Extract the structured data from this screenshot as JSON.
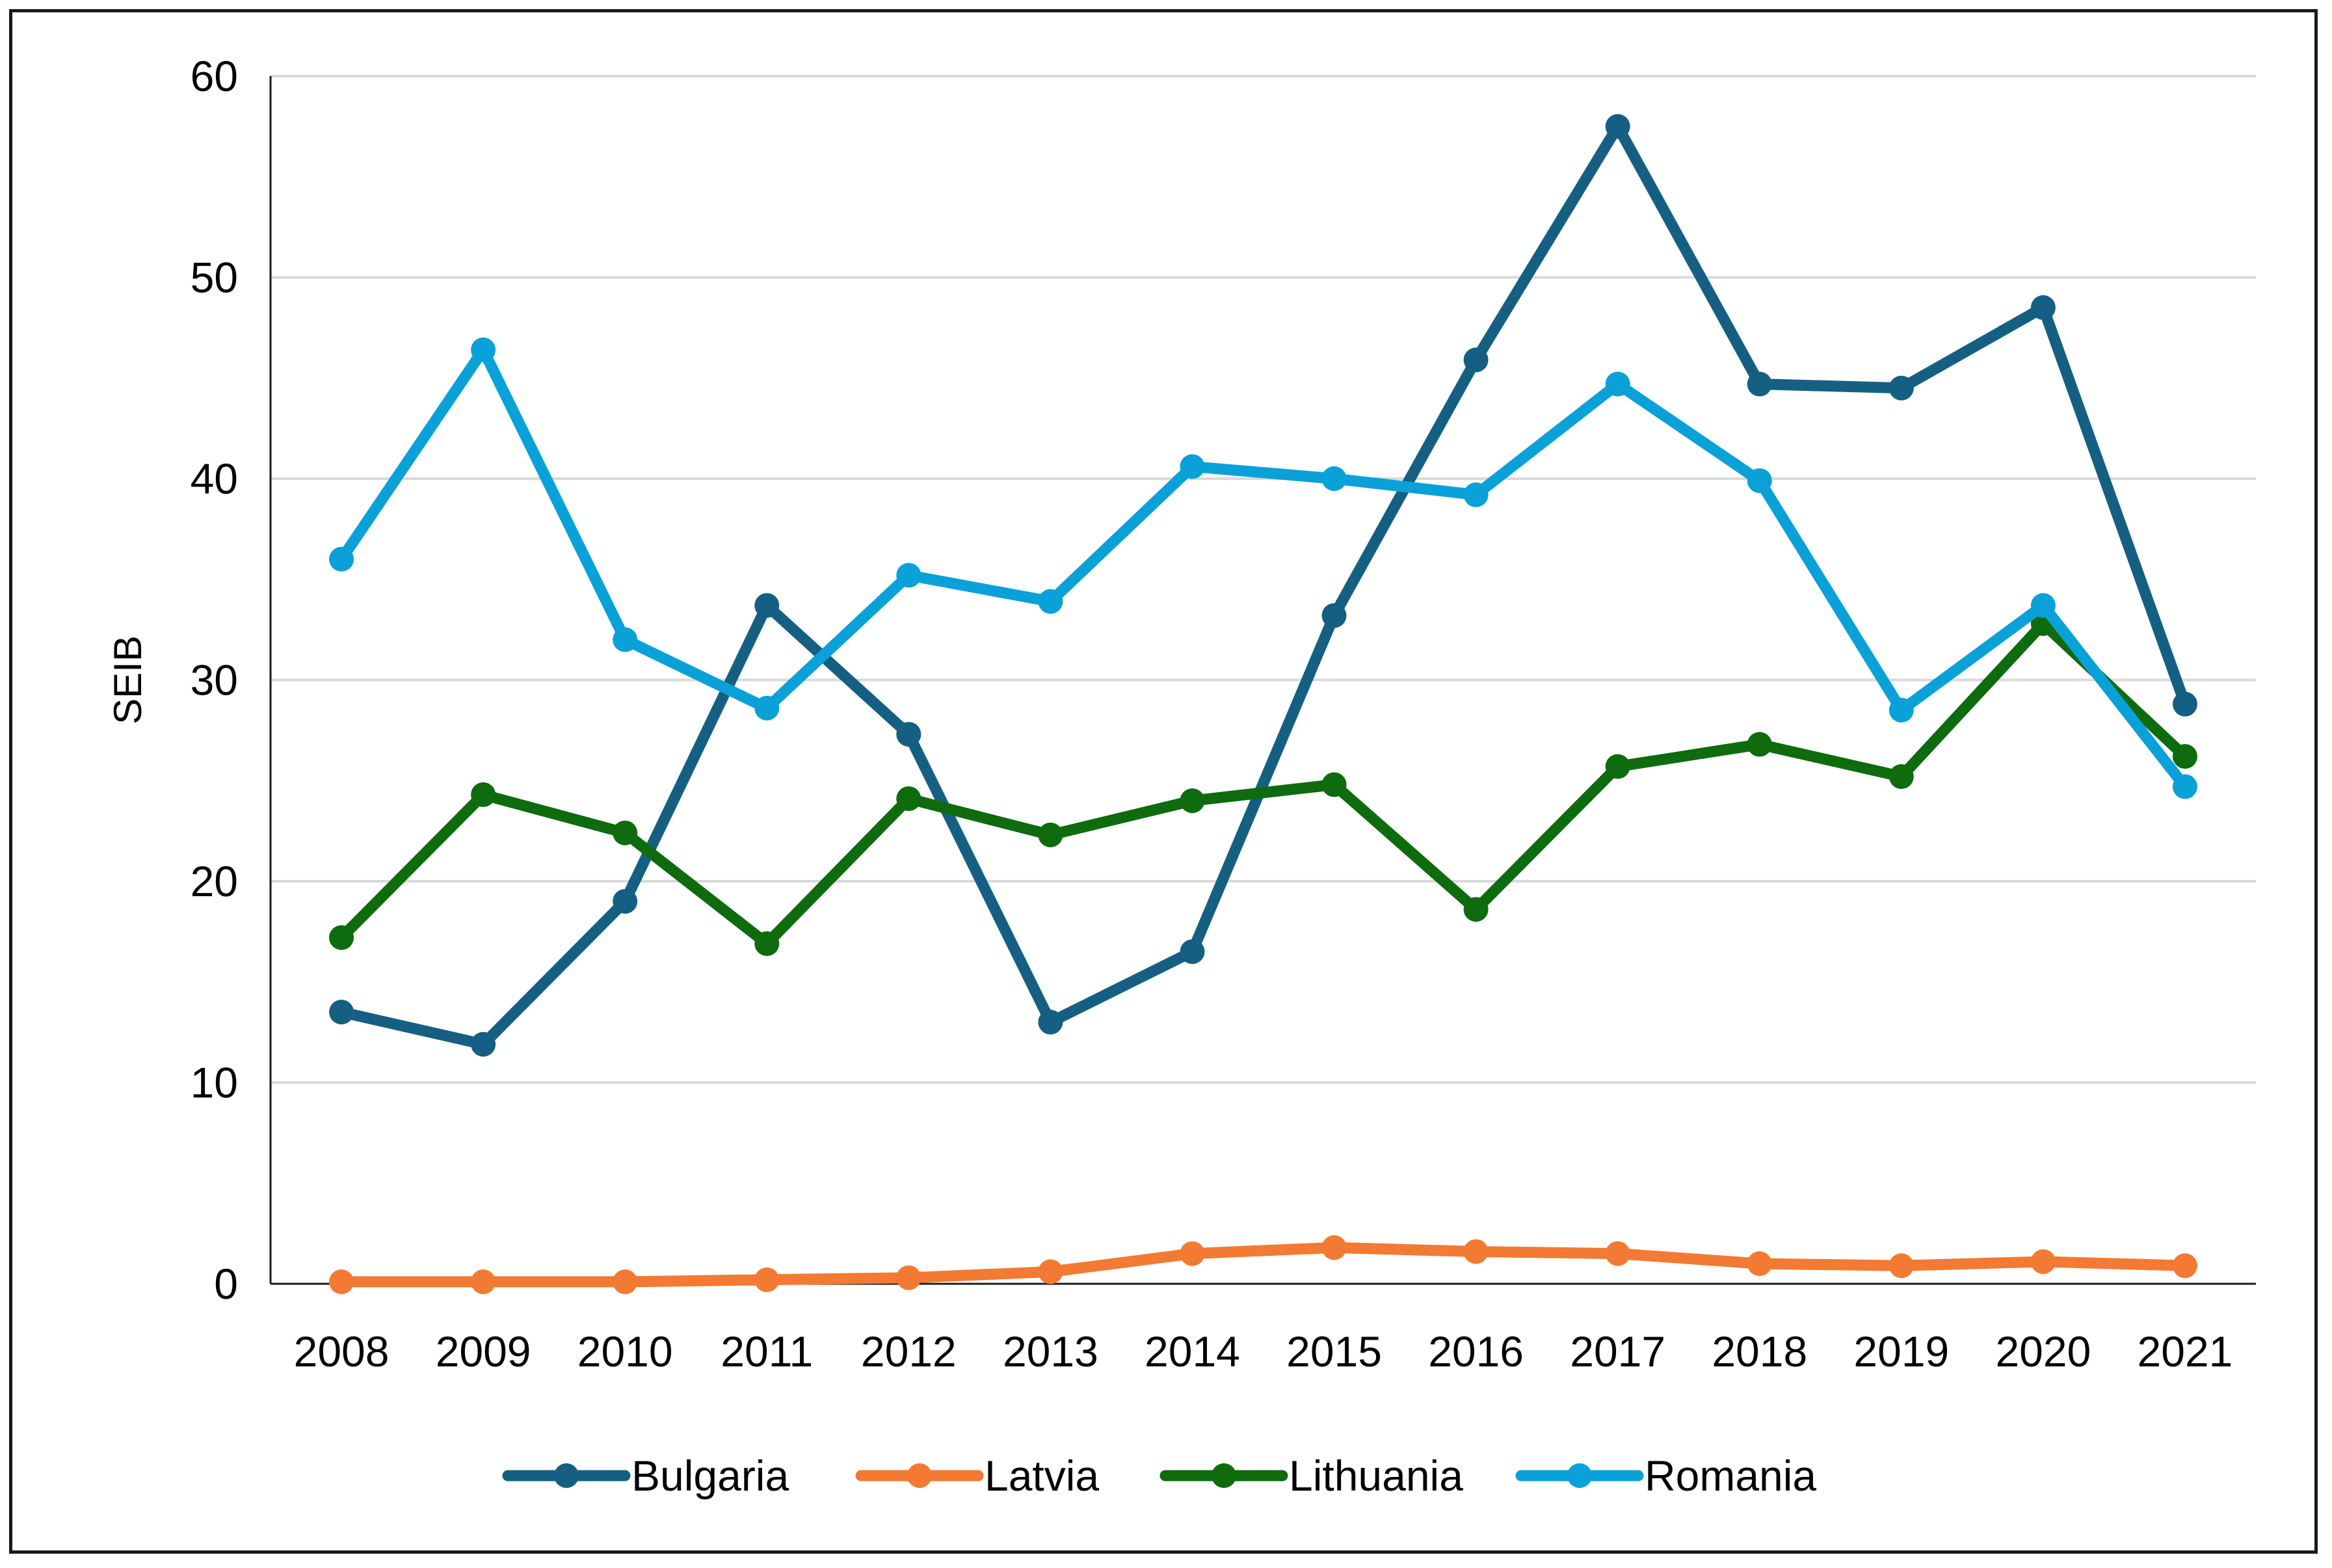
{
  "chart_data": {
    "type": "line",
    "title": "",
    "xlabel": "",
    "ylabel": "SEIB",
    "ylim": [
      0,
      60
    ],
    "yticks": [
      0,
      10,
      20,
      30,
      40,
      50,
      60
    ],
    "grid": "horizontal",
    "legend_position": "bottom",
    "categories": [
      "2008",
      "2009",
      "2010",
      "2011",
      "2012",
      "2013",
      "2014",
      "2015",
      "2016",
      "2017",
      "2018",
      "2019",
      "2020",
      "2021"
    ],
    "series": [
      {
        "name": "Bulgaria",
        "color": "#156082",
        "values": [
          13.5,
          11.9,
          19.0,
          33.7,
          27.3,
          13.0,
          16.5,
          33.2,
          45.9,
          57.5,
          44.7,
          44.5,
          48.5,
          28.8
        ]
      },
      {
        "name": "Latvia",
        "color": "#F37A33",
        "values": [
          0.1,
          0.1,
          0.1,
          0.2,
          0.3,
          0.6,
          1.5,
          1.8,
          1.6,
          1.5,
          1.0,
          0.9,
          1.1,
          0.9
        ]
      },
      {
        "name": "Lithuania",
        "color": "#0E6B0E",
        "values": [
          17.2,
          24.3,
          22.4,
          16.9,
          24.1,
          22.3,
          24.0,
          24.8,
          18.6,
          25.7,
          26.8,
          25.2,
          32.8,
          26.2
        ]
      },
      {
        "name": "Romania",
        "color": "#0AA1D8",
        "values": [
          36.0,
          46.4,
          32.0,
          28.6,
          35.2,
          33.9,
          40.6,
          40.0,
          39.2,
          44.7,
          39.9,
          28.5,
          33.7,
          24.7
        ]
      }
    ]
  }
}
